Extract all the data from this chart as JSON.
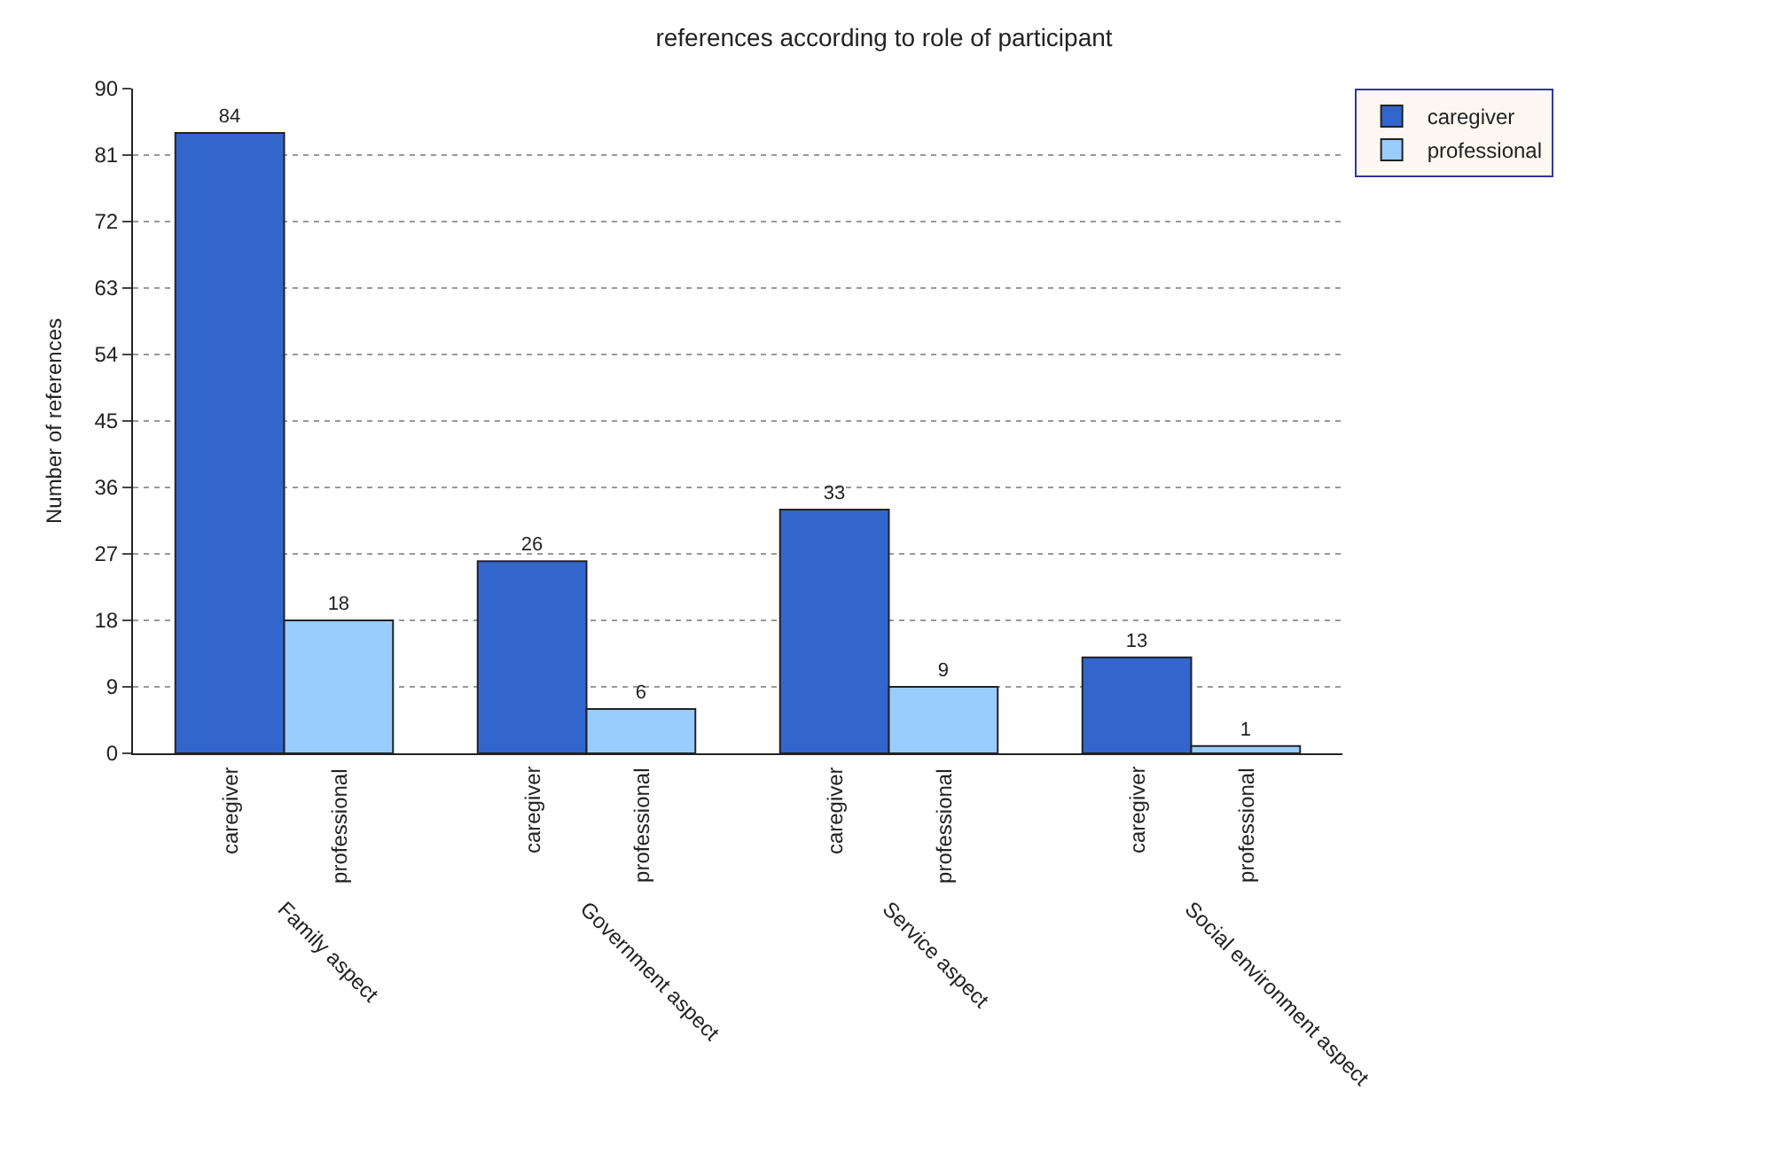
{
  "chart_data": {
    "type": "bar",
    "title": "references according to role of participant",
    "ylabel": "Number of references",
    "categories": [
      "Family aspect",
      "Government aspect",
      "Service aspect",
      "Social environment aspect"
    ],
    "series": [
      {
        "name": "caregiver",
        "color": "#3366cc",
        "values": [
          84,
          26,
          33,
          13
        ]
      },
      {
        "name": "professional",
        "color": "#99ccff",
        "values": [
          18,
          6,
          9,
          1
        ]
      }
    ],
    "ylim": [
      0,
      90
    ],
    "yticks": [
      0,
      9,
      18,
      27,
      36,
      45,
      54,
      63,
      72,
      81,
      90
    ],
    "grid": "y",
    "data_labels": true,
    "legend": "top right"
  }
}
